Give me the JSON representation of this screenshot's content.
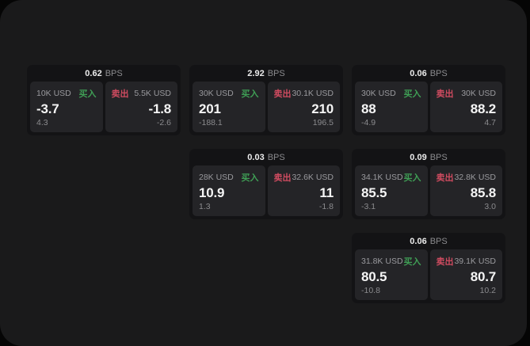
{
  "labels": {
    "buy": "买入",
    "sell": "卖出",
    "bps": "BPS"
  },
  "colors": {
    "buy_green": "#3f9e55",
    "sell_red": "#cf4b60",
    "panel_bg": "#1a1a1b",
    "card_bg": "#131315",
    "cell_bg": "#242427"
  },
  "cards": [
    {
      "bps_value": "0.62",
      "buy": {
        "amount": "10K USD",
        "price": "-3.7",
        "delta": "4.3"
      },
      "sell": {
        "amount": "5.5K USD",
        "price": "-1.8",
        "delta": "-2.6"
      }
    },
    {
      "bps_value": "2.92",
      "buy": {
        "amount": "30K USD",
        "price": "201",
        "delta": "-188.1"
      },
      "sell": {
        "amount": "30.1K USD",
        "price": "210",
        "delta": "196.5"
      }
    },
    {
      "bps_value": "0.06",
      "buy": {
        "amount": "30K USD",
        "price": "88",
        "delta": "-4.9"
      },
      "sell": {
        "amount": "30K USD",
        "price": "88.2",
        "delta": "4.7"
      }
    },
    {
      "bps_value": "0.03",
      "buy": {
        "amount": "28K USD",
        "price": "10.9",
        "delta": "1.3"
      },
      "sell": {
        "amount": "32.6K USD",
        "price": "11",
        "delta": "-1.8"
      }
    },
    {
      "bps_value": "0.09",
      "buy": {
        "amount": "34.1K USD",
        "price": "85.5",
        "delta": "-3.1"
      },
      "sell": {
        "amount": "32.8K USD",
        "price": "85.8",
        "delta": "3.0"
      }
    },
    {
      "bps_value": "0.06",
      "buy": {
        "amount": "31.8K USD",
        "price": "80.5",
        "delta": "-10.8"
      },
      "sell": {
        "amount": "39.1K USD",
        "price": "80.7",
        "delta": "10.2"
      }
    }
  ]
}
